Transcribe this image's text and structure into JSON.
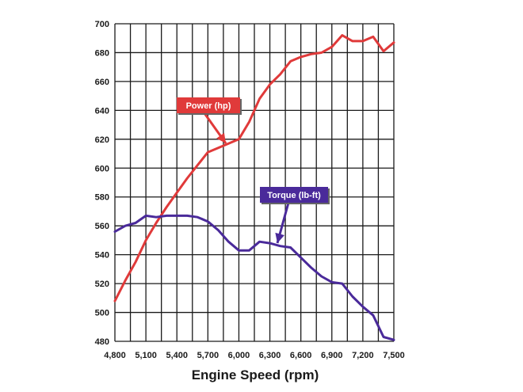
{
  "chart_data": {
    "type": "line",
    "title": "",
    "xlabel": "Engine Speed (rpm)",
    "ylabel": "",
    "xlim": [
      4800,
      7500
    ],
    "ylim": [
      480,
      700
    ],
    "x_ticks": [
      4800,
      5100,
      5400,
      5700,
      6000,
      6300,
      6600,
      6900,
      7200,
      7500
    ],
    "x_tick_labels": [
      "4,800",
      "5,100",
      "5,400",
      "5,700",
      "6,000",
      "6,300",
      "6,600",
      "6,900",
      "7,200",
      "7,500"
    ],
    "y_ticks": [
      480,
      500,
      520,
      540,
      560,
      580,
      600,
      620,
      640,
      660,
      680,
      700
    ],
    "y_tick_labels": [
      "480",
      "500",
      "520",
      "540",
      "560",
      "580",
      "600",
      "620",
      "640",
      "660",
      "680",
      "700"
    ],
    "grid": true,
    "colors": {
      "power": "#e03a3a",
      "torque": "#4a2a9a",
      "grid": "#1a1a1a"
    },
    "series": [
      {
        "name": "Power (hp)",
        "x": [
          4800,
          4900,
          5000,
          5100,
          5200,
          5300,
          5400,
          5500,
          5600,
          5700,
          5800,
          5900,
          6000,
          6100,
          6200,
          6300,
          6400,
          6500,
          6600,
          6700,
          6800,
          6900,
          7000,
          7100,
          7200,
          7300,
          7400,
          7500
        ],
        "values": [
          508,
          522,
          535,
          550,
          562,
          573,
          583,
          593,
          602,
          611,
          614,
          617,
          620,
          632,
          648,
          658,
          665,
          674,
          677,
          679,
          680,
          684,
          692,
          688,
          688,
          691,
          681,
          687
        ]
      },
      {
        "name": "Torque (lb-ft)",
        "x": [
          4800,
          4900,
          5000,
          5100,
          5200,
          5300,
          5400,
          5500,
          5600,
          5700,
          5800,
          5900,
          6000,
          6100,
          6200,
          6300,
          6400,
          6500,
          6600,
          6700,
          6800,
          6900,
          7000,
          7100,
          7200,
          7300,
          7400,
          7500
        ],
        "values": [
          556,
          560,
          562,
          567,
          566,
          567,
          567,
          567,
          566,
          563,
          557,
          549,
          543,
          543,
          549,
          548,
          546,
          545,
          538,
          531,
          525,
          521,
          520,
          511,
          504,
          498,
          483,
          481
        ]
      }
    ],
    "annotations": [
      {
        "text": "Power (hp)",
        "series": "Power (hp)",
        "points_to": [
          5960,
          615
        ]
      },
      {
        "text": "Torque (lb-ft)",
        "series": "Torque (lb-ft)",
        "points_to": [
          6270,
          548
        ]
      }
    ]
  }
}
